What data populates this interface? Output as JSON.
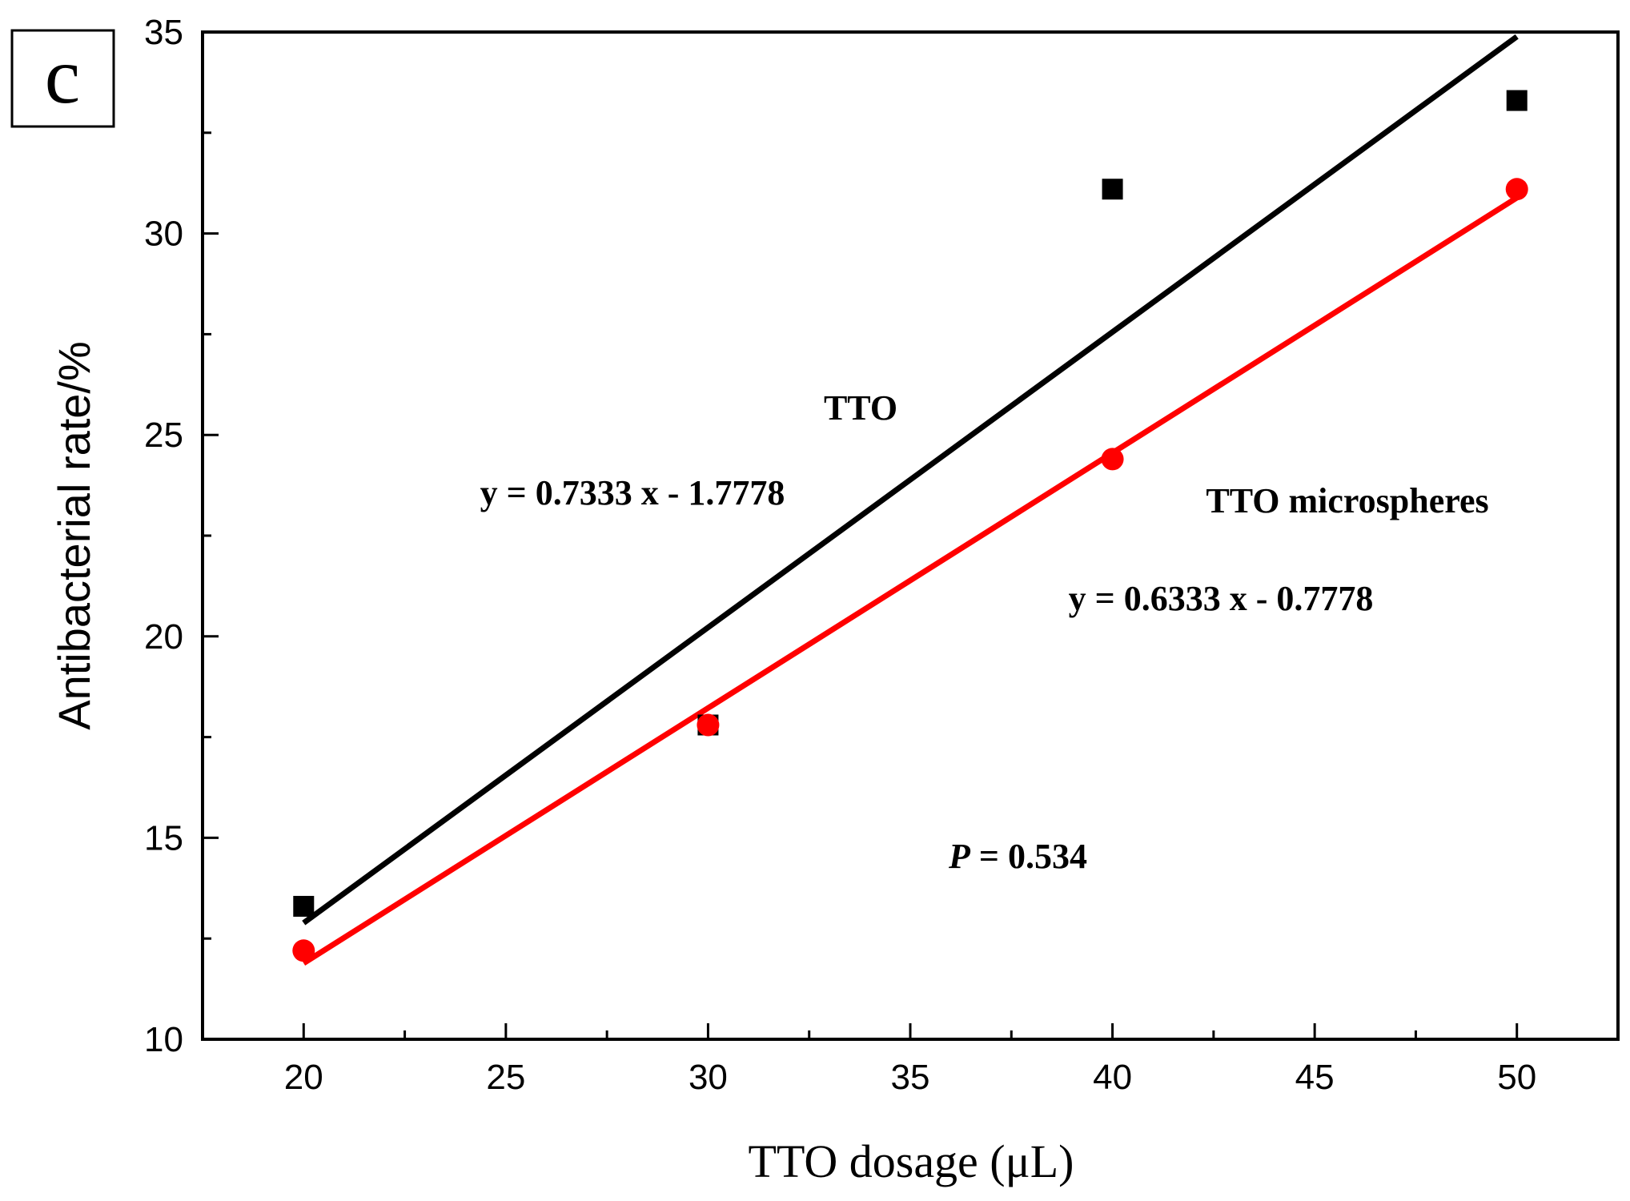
{
  "chart_data": {
    "type": "scatter",
    "panel_label": "c",
    "xlabel": "TTO dosage (μL)",
    "ylabel": "Antibacterial rate/%",
    "xlim": [
      17.5,
      52.5
    ],
    "ylim": [
      10,
      35
    ],
    "xticks": [
      20,
      25,
      30,
      35,
      40,
      45,
      50
    ],
    "yticks": [
      10,
      15,
      20,
      25,
      30,
      35
    ],
    "series": [
      {
        "name": "TTO",
        "marker": "square",
        "color": "#000000",
        "x": [
          20,
          30,
          40,
          50
        ],
        "y": [
          13.3,
          17.8,
          31.1,
          33.3
        ],
        "fit": {
          "slope": 0.7333,
          "intercept": -1.7778,
          "x_range": [
            20,
            50
          ]
        }
      },
      {
        "name": "TTO microspheres",
        "marker": "circle",
        "color": "#ff0000",
        "x": [
          20,
          30,
          40,
          50
        ],
        "y": [
          12.2,
          17.8,
          24.4,
          31.1
        ],
        "fit": {
          "slope": 0.6333,
          "intercept": -0.7778,
          "x_range": [
            20,
            50
          ]
        }
      }
    ],
    "annotations": {
      "tto_label": "TTO",
      "tto_equation": "y = 0.7333 x - 1.7778",
      "micro_label": "TTO microspheres",
      "micro_equation": "y = 0.6333 x - 0.7778",
      "p_symbol": "P",
      "p_value": " = 0.534"
    }
  }
}
